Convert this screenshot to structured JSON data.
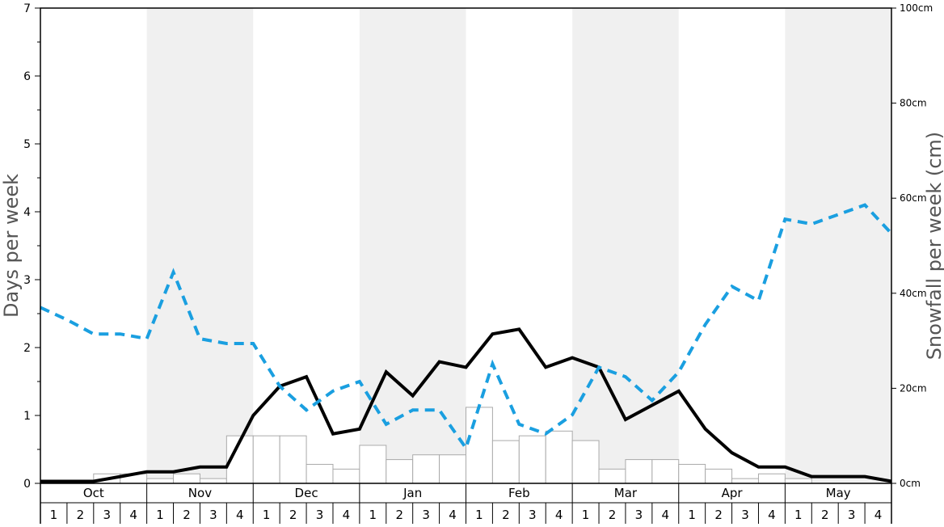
{
  "chart_data": {
    "type": "bar",
    "ylabel_left": "Days per week",
    "ylabel_right": "Snowfall per week (cm)",
    "ylim_left": [
      0,
      7
    ],
    "ylim_right": [
      0,
      100
    ],
    "left_ticks": [
      "0",
      "1",
      "2",
      "3",
      "4",
      "5",
      "6",
      "7"
    ],
    "right_ticks": [
      "0cm",
      "20cm",
      "40cm",
      "60cm",
      "80cm",
      "100cm"
    ],
    "months": [
      "Oct",
      "Nov",
      "Dec",
      "Jan",
      "Feb",
      "Mar",
      "Apr",
      "May"
    ],
    "week_labels": [
      "1",
      "2",
      "3",
      "4"
    ],
    "shaded_months": [
      "Nov",
      "Jan",
      "Mar",
      "May"
    ],
    "colors": {
      "line_solid": "#000000",
      "line_dashed": "#1a9fe0",
      "bar_fill": "#ffffff",
      "bar_stroke": "#aaaaaa",
      "shade": "#f0f0f0"
    },
    "series": [
      {
        "kind": "bar",
        "axis": "right",
        "values": [
          0,
          0,
          2,
          2,
          1,
          2,
          1,
          10,
          10,
          10,
          4,
          3,
          8,
          5,
          6,
          6,
          16,
          9,
          10,
          11,
          9,
          3,
          5,
          5,
          4,
          3,
          1,
          2,
          1,
          0,
          0,
          0
        ]
      },
      {
        "kind": "line",
        "style": "solid",
        "axis": "left",
        "values": [
          0.03,
          0.03,
          0.03,
          0.1,
          0.17,
          0.17,
          0.24,
          0.24,
          1.0,
          1.43,
          1.57,
          0.73,
          0.8,
          1.64,
          1.29,
          1.79,
          1.71,
          2.2,
          2.27,
          1.71,
          1.85,
          1.71,
          0.94,
          1.15,
          1.36,
          0.8,
          0.45,
          0.24,
          0.24,
          0.1,
          0.1,
          0.1,
          0.03
        ]
      },
      {
        "kind": "line",
        "style": "dashed",
        "axis": "left",
        "values": [
          2.59,
          2.41,
          2.2,
          2.2,
          2.13,
          3.11,
          2.13,
          2.06,
          2.06,
          1.43,
          1.08,
          1.36,
          1.5,
          0.87,
          1.08,
          1.08,
          0.52,
          1.76,
          0.87,
          0.73,
          1.01,
          1.71,
          1.57,
          1.22,
          1.64,
          2.34,
          2.9,
          2.69,
          3.89,
          3.82,
          3.96,
          4.1,
          3.68
        ]
      }
    ]
  }
}
